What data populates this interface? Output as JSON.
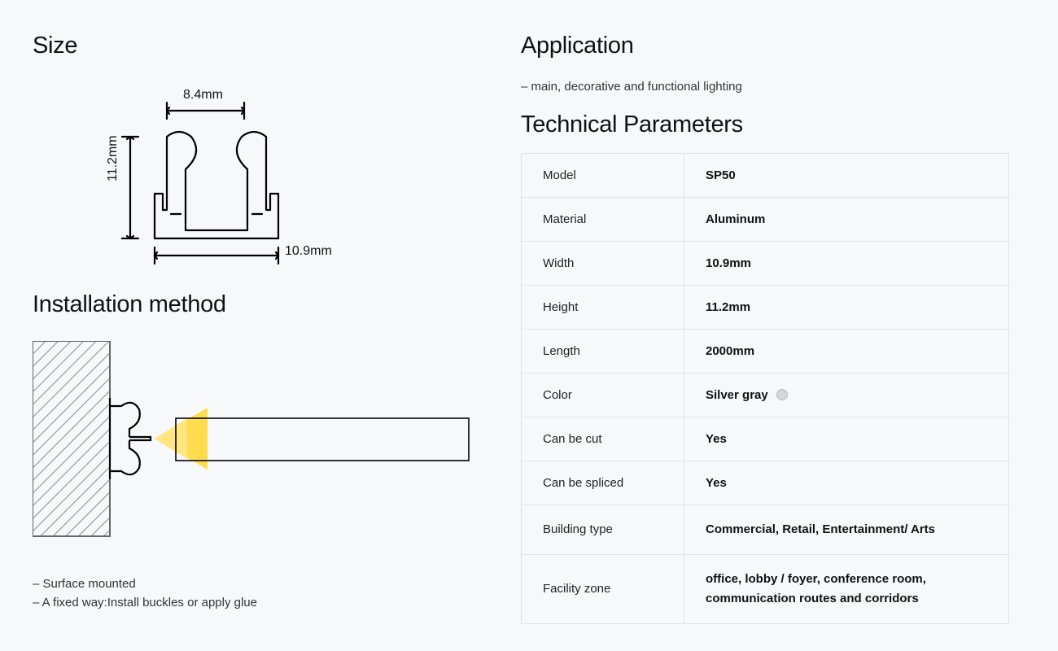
{
  "size": {
    "heading": "Size",
    "top_dim": "8.4mm",
    "left_dim": "11.2mm",
    "bottom_dim": "10.9mm",
    "stroke": "#000000",
    "stroke_width": 2.2
  },
  "installation": {
    "heading": "Installation method",
    "notes": [
      "– Surface mounted",
      "– A fixed way:Install buckles or apply glue"
    ],
    "light_color": "#ffd93d",
    "hatch_color": "#8a8a8a"
  },
  "application": {
    "heading": "Application",
    "notes": [
      "– main, decorative and functional lighting"
    ]
  },
  "tech": {
    "heading": "Technical Parameters",
    "rows": [
      {
        "label": "Model",
        "value": "SP50"
      },
      {
        "label": "Material",
        "value": "Aluminum"
      },
      {
        "label": "Width",
        "value": "10.9mm"
      },
      {
        "label": "Height",
        "value": "11.2mm"
      },
      {
        "label": "Length",
        "value": "2000mm"
      },
      {
        "label": "Color",
        "value": "Silver gray",
        "swatch": "#d6d6d6"
      },
      {
        "label": "Can be cut",
        "value": "Yes"
      },
      {
        "label": "Can be spliced",
        "value": "Yes"
      },
      {
        "label": "Building type",
        "value": "Commercial, Retail, Entertainment/ Arts"
      },
      {
        "label": "Facility zone",
        "value": "office, lobby / foyer, conference room, communication routes and corridors"
      }
    ]
  }
}
